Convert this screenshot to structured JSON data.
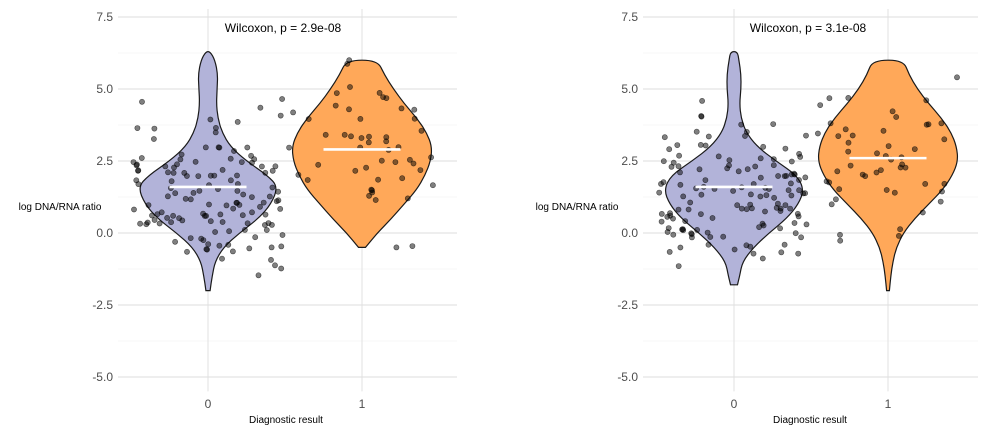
{
  "chart_data": [
    {
      "type": "violin",
      "panel": "left",
      "annotation": "Wilcoxon, p = 2.9e-08",
      "xlabel": "Diagnostic result",
      "ylabel": "log DNA/RNA ratio",
      "ylim": [
        -5.5,
        7.5
      ],
      "yticks": [
        7.5,
        5.0,
        2.5,
        0.0,
        -2.5,
        -5.0
      ],
      "ytick_labels": [
        "7.5",
        "5.0",
        "2.5",
        "0.0",
        "-2.5",
        "-5.0"
      ],
      "categories": [
        "0",
        "1"
      ],
      "groups": [
        {
          "name": "0",
          "color": "#b2b3d9",
          "median": 1.6,
          "range": [
            -2.0,
            6.3
          ],
          "profile": [
            [
              -2.0,
              0.03
            ],
            [
              -1.5,
              0.06
            ],
            [
              -1.0,
              0.1
            ],
            [
              -0.5,
              0.22
            ],
            [
              0.0,
              0.45
            ],
            [
              0.5,
              0.72
            ],
            [
              1.0,
              0.9
            ],
            [
              1.6,
              1.0
            ],
            [
              2.0,
              0.85
            ],
            [
              2.5,
              0.55
            ],
            [
              3.0,
              0.32
            ],
            [
              3.5,
              0.2
            ],
            [
              4.0,
              0.14
            ],
            [
              4.5,
              0.12
            ],
            [
              5.0,
              0.13
            ],
            [
              5.5,
              0.14
            ],
            [
              6.0,
              0.1
            ],
            [
              6.3,
              0.03
            ]
          ],
          "n_points": 130,
          "seed": 11,
          "jitter_sd": 1.3,
          "jitter_center": 1.55
        },
        {
          "name": "1",
          "color": "#ffa859",
          "median": 2.9,
          "range": [
            -0.5,
            6.0
          ],
          "profile": [
            [
              -0.5,
              0.05
            ],
            [
              0.0,
              0.22
            ],
            [
              0.5,
              0.42
            ],
            [
              1.0,
              0.6
            ],
            [
              1.5,
              0.78
            ],
            [
              2.0,
              0.9
            ],
            [
              2.5,
              0.98
            ],
            [
              3.0,
              1.0
            ],
            [
              3.5,
              0.92
            ],
            [
              4.0,
              0.78
            ],
            [
              4.5,
              0.6
            ],
            [
              5.0,
              0.45
            ],
            [
              5.5,
              0.32
            ],
            [
              6.0,
              0.22
            ]
          ],
          "n_points": 50,
          "seed": 23,
          "jitter_sd": 1.35,
          "jitter_center": 2.9
        }
      ]
    },
    {
      "type": "violin",
      "panel": "right",
      "annotation": "Wilcoxon, p = 3.1e-08",
      "xlabel": "Diagnostic result",
      "ylabel": "log DNA/RNA ratio",
      "ylim": [
        -5.5,
        7.5
      ],
      "yticks": [
        7.5,
        5.0,
        2.5,
        0.0,
        -2.5,
        -5.0
      ],
      "ytick_labels": [
        "7.5",
        "5.0",
        "2.5",
        "0.0",
        "-2.5",
        "-5.0"
      ],
      "categories": [
        "0",
        "1"
      ],
      "groups": [
        {
          "name": "0",
          "color": "#b2b3d9",
          "median": 1.6,
          "range": [
            -1.8,
            6.3
          ],
          "profile": [
            [
              -1.8,
              0.05
            ],
            [
              -1.5,
              0.08
            ],
            [
              -1.0,
              0.12
            ],
            [
              -0.5,
              0.28
            ],
            [
              0.0,
              0.5
            ],
            [
              0.5,
              0.75
            ],
            [
              1.0,
              0.92
            ],
            [
              1.5,
              1.0
            ],
            [
              2.0,
              0.9
            ],
            [
              2.5,
              0.6
            ],
            [
              3.0,
              0.33
            ],
            [
              3.5,
              0.17
            ],
            [
              4.0,
              0.1
            ],
            [
              4.5,
              0.08
            ],
            [
              5.0,
              0.1
            ],
            [
              5.5,
              0.1
            ],
            [
              6.0,
              0.07
            ],
            [
              6.3,
              0.05
            ]
          ],
          "n_points": 130,
          "seed": 37,
          "jitter_sd": 1.25,
          "jitter_center": 1.5
        },
        {
          "name": "1",
          "color": "#ffa859",
          "median": 2.6,
          "range": [
            -2.0,
            6.0
          ],
          "profile": [
            [
              -2.0,
              0.02
            ],
            [
              -1.5,
              0.04
            ],
            [
              -1.0,
              0.07
            ],
            [
              -0.5,
              0.12
            ],
            [
              0.0,
              0.22
            ],
            [
              0.5,
              0.38
            ],
            [
              1.0,
              0.58
            ],
            [
              1.5,
              0.78
            ],
            [
              2.0,
              0.92
            ],
            [
              2.5,
              1.0
            ],
            [
              3.0,
              0.98
            ],
            [
              3.5,
              0.9
            ],
            [
              4.0,
              0.76
            ],
            [
              4.5,
              0.58
            ],
            [
              5.0,
              0.42
            ],
            [
              5.5,
              0.3
            ],
            [
              6.0,
              0.22
            ]
          ],
          "n_points": 50,
          "seed": 53,
          "jitter_sd": 1.4,
          "jitter_center": 2.7
        }
      ]
    }
  ]
}
